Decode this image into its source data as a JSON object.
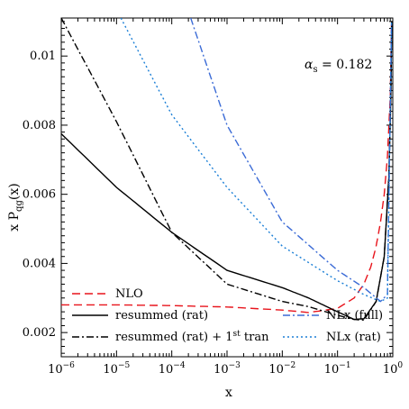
{
  "chart_data": {
    "type": "line",
    "xlabel": "x",
    "ylabel_main": "x P",
    "ylabel_sub": "qg",
    "ylabel_tail": "(x)",
    "x_scale": "log",
    "xlim": [
      1e-06,
      1
    ],
    "ylim": [
      0.0013,
      0.0111
    ],
    "x_ticks": [
      {
        "value": 1e-06,
        "base": "10",
        "exp": "−6"
      },
      {
        "value": 1e-05,
        "base": "10",
        "exp": "−5"
      },
      {
        "value": 0.0001,
        "base": "10",
        "exp": "−4"
      },
      {
        "value": 0.001,
        "base": "10",
        "exp": "−3"
      },
      {
        "value": 0.01,
        "base": "10",
        "exp": "−2"
      },
      {
        "value": 0.1,
        "base": "10",
        "exp": "−1"
      },
      {
        "value": 1,
        "base": "10",
        "exp": "0"
      }
    ],
    "y_ticks": [
      {
        "value": 0.002,
        "label": "0.002"
      },
      {
        "value": 0.004,
        "label": "0.004"
      },
      {
        "value": 0.006,
        "label": "0.006"
      },
      {
        "value": 0.008,
        "label": "0.008"
      },
      {
        "value": 0.01,
        "label": "0.01"
      }
    ],
    "annotation": {
      "symbol": "α",
      "sub": "s",
      "text": " = 0.182"
    },
    "grid": false,
    "legend_position": "bottom",
    "series": [
      {
        "name": "NLO",
        "color": "#e8141c",
        "dash": "dashed",
        "x": [
          1e-06,
          1e-05,
          0.0001,
          0.001,
          0.01,
          0.03,
          0.1,
          0.2,
          0.3,
          0.4,
          0.5,
          0.6,
          0.7,
          0.8,
          0.9,
          0.95
        ],
        "y": [
          0.0028,
          0.0028,
          0.00278,
          0.00274,
          0.00265,
          0.00258,
          0.0027,
          0.003,
          0.0034,
          0.0039,
          0.0045,
          0.0052,
          0.006,
          0.0071,
          0.0088,
          0.011
        ]
      },
      {
        "name": "resummed (rat)",
        "color": "#000000",
        "dash": "solid",
        "x": [
          1e-06,
          1e-05,
          0.0001,
          0.001,
          0.01,
          0.03,
          0.1,
          0.2,
          0.3,
          0.5,
          0.7,
          0.85,
          0.92,
          0.96
        ],
        "y": [
          0.00775,
          0.0062,
          0.0049,
          0.0038,
          0.0033,
          0.003,
          0.0026,
          0.00238,
          0.0024,
          0.0029,
          0.0042,
          0.0065,
          0.0088,
          0.011
        ]
      },
      {
        "name": "resummed (rat) + 1",
        "name_sup": "st",
        "name_tail": " tran",
        "color": "#000000",
        "dash": "dashdot",
        "x": [
          1e-06,
          1e-05,
          0.0001,
          0.001,
          0.01,
          0.03,
          0.1,
          0.2,
          0.3,
          0.5,
          0.7,
          0.85,
          0.92,
          0.96
        ],
        "y": [
          0.0111,
          0.0081,
          0.0049,
          0.0034,
          0.0029,
          0.00275,
          0.0025,
          0.00238,
          0.00236,
          0.0029,
          0.0042,
          0.0065,
          0.0088,
          0.011
        ]
      },
      {
        "name": "NLx (full)",
        "color": "#3b6bd6",
        "dash": "dashdot",
        "x": [
          0.00022,
          0.001,
          0.01,
          0.1,
          0.3,
          0.6,
          0.8,
          0.95
        ],
        "y": [
          0.0111,
          0.008,
          0.0052,
          0.0038,
          0.0033,
          0.0029,
          0.0031,
          0.011
        ]
      },
      {
        "name": "NLx (rat)",
        "color": "#1b7fd6",
        "dash": "dotted",
        "x": [
          1.2e-05,
          0.0001,
          0.001,
          0.01,
          0.1,
          0.3,
          0.6,
          0.8,
          0.95
        ],
        "y": [
          0.0111,
          0.0083,
          0.0062,
          0.0045,
          0.0035,
          0.0031,
          0.0029,
          0.003,
          0.011
        ]
      }
    ]
  }
}
